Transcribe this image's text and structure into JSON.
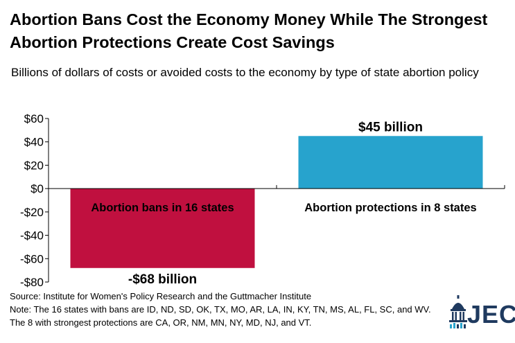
{
  "title": "Abortion Bans Cost the Economy Money While The Strongest Abortion Protections Create Cost Savings",
  "subtitle": "Billions of dollars of costs or avoided costs to the economy by type of state abortion policy",
  "source": {
    "line1": "Source: Institute for Women's Policy Research and the Guttmacher Institute",
    "line2": "Note: The 16 states with bans are ID, ND, SD, OK, TX, MO, AR, LA, IN, KY, TN, MS, AL, FL, SC, and WV. The 8 with strongest protections are CA, OR, NM, MN, NY, MD, NJ, and VT."
  },
  "logo": {
    "text": "JEC",
    "icon": "capitol-dome-icon",
    "color": "#1f3a5f"
  },
  "chart_data": {
    "type": "bar",
    "categories": [
      "Abortion bans in 16 states",
      "Abortion protections in 8 states"
    ],
    "values": [
      -68,
      45
    ],
    "data_labels": [
      "-$68 billion",
      "$45 billion"
    ],
    "colors": [
      "#c0103f",
      "#27a3cd"
    ],
    "ylim": [
      -80,
      60
    ],
    "yticks": [
      60,
      40,
      20,
      0,
      -20,
      -40,
      -60,
      -80
    ],
    "ytick_labels": [
      "$60",
      "$40",
      "$20",
      "$0",
      "-$20",
      "-$40",
      "-$60",
      "-$80"
    ],
    "xlabel": "",
    "ylabel": "",
    "grid": false,
    "legend": "none"
  }
}
